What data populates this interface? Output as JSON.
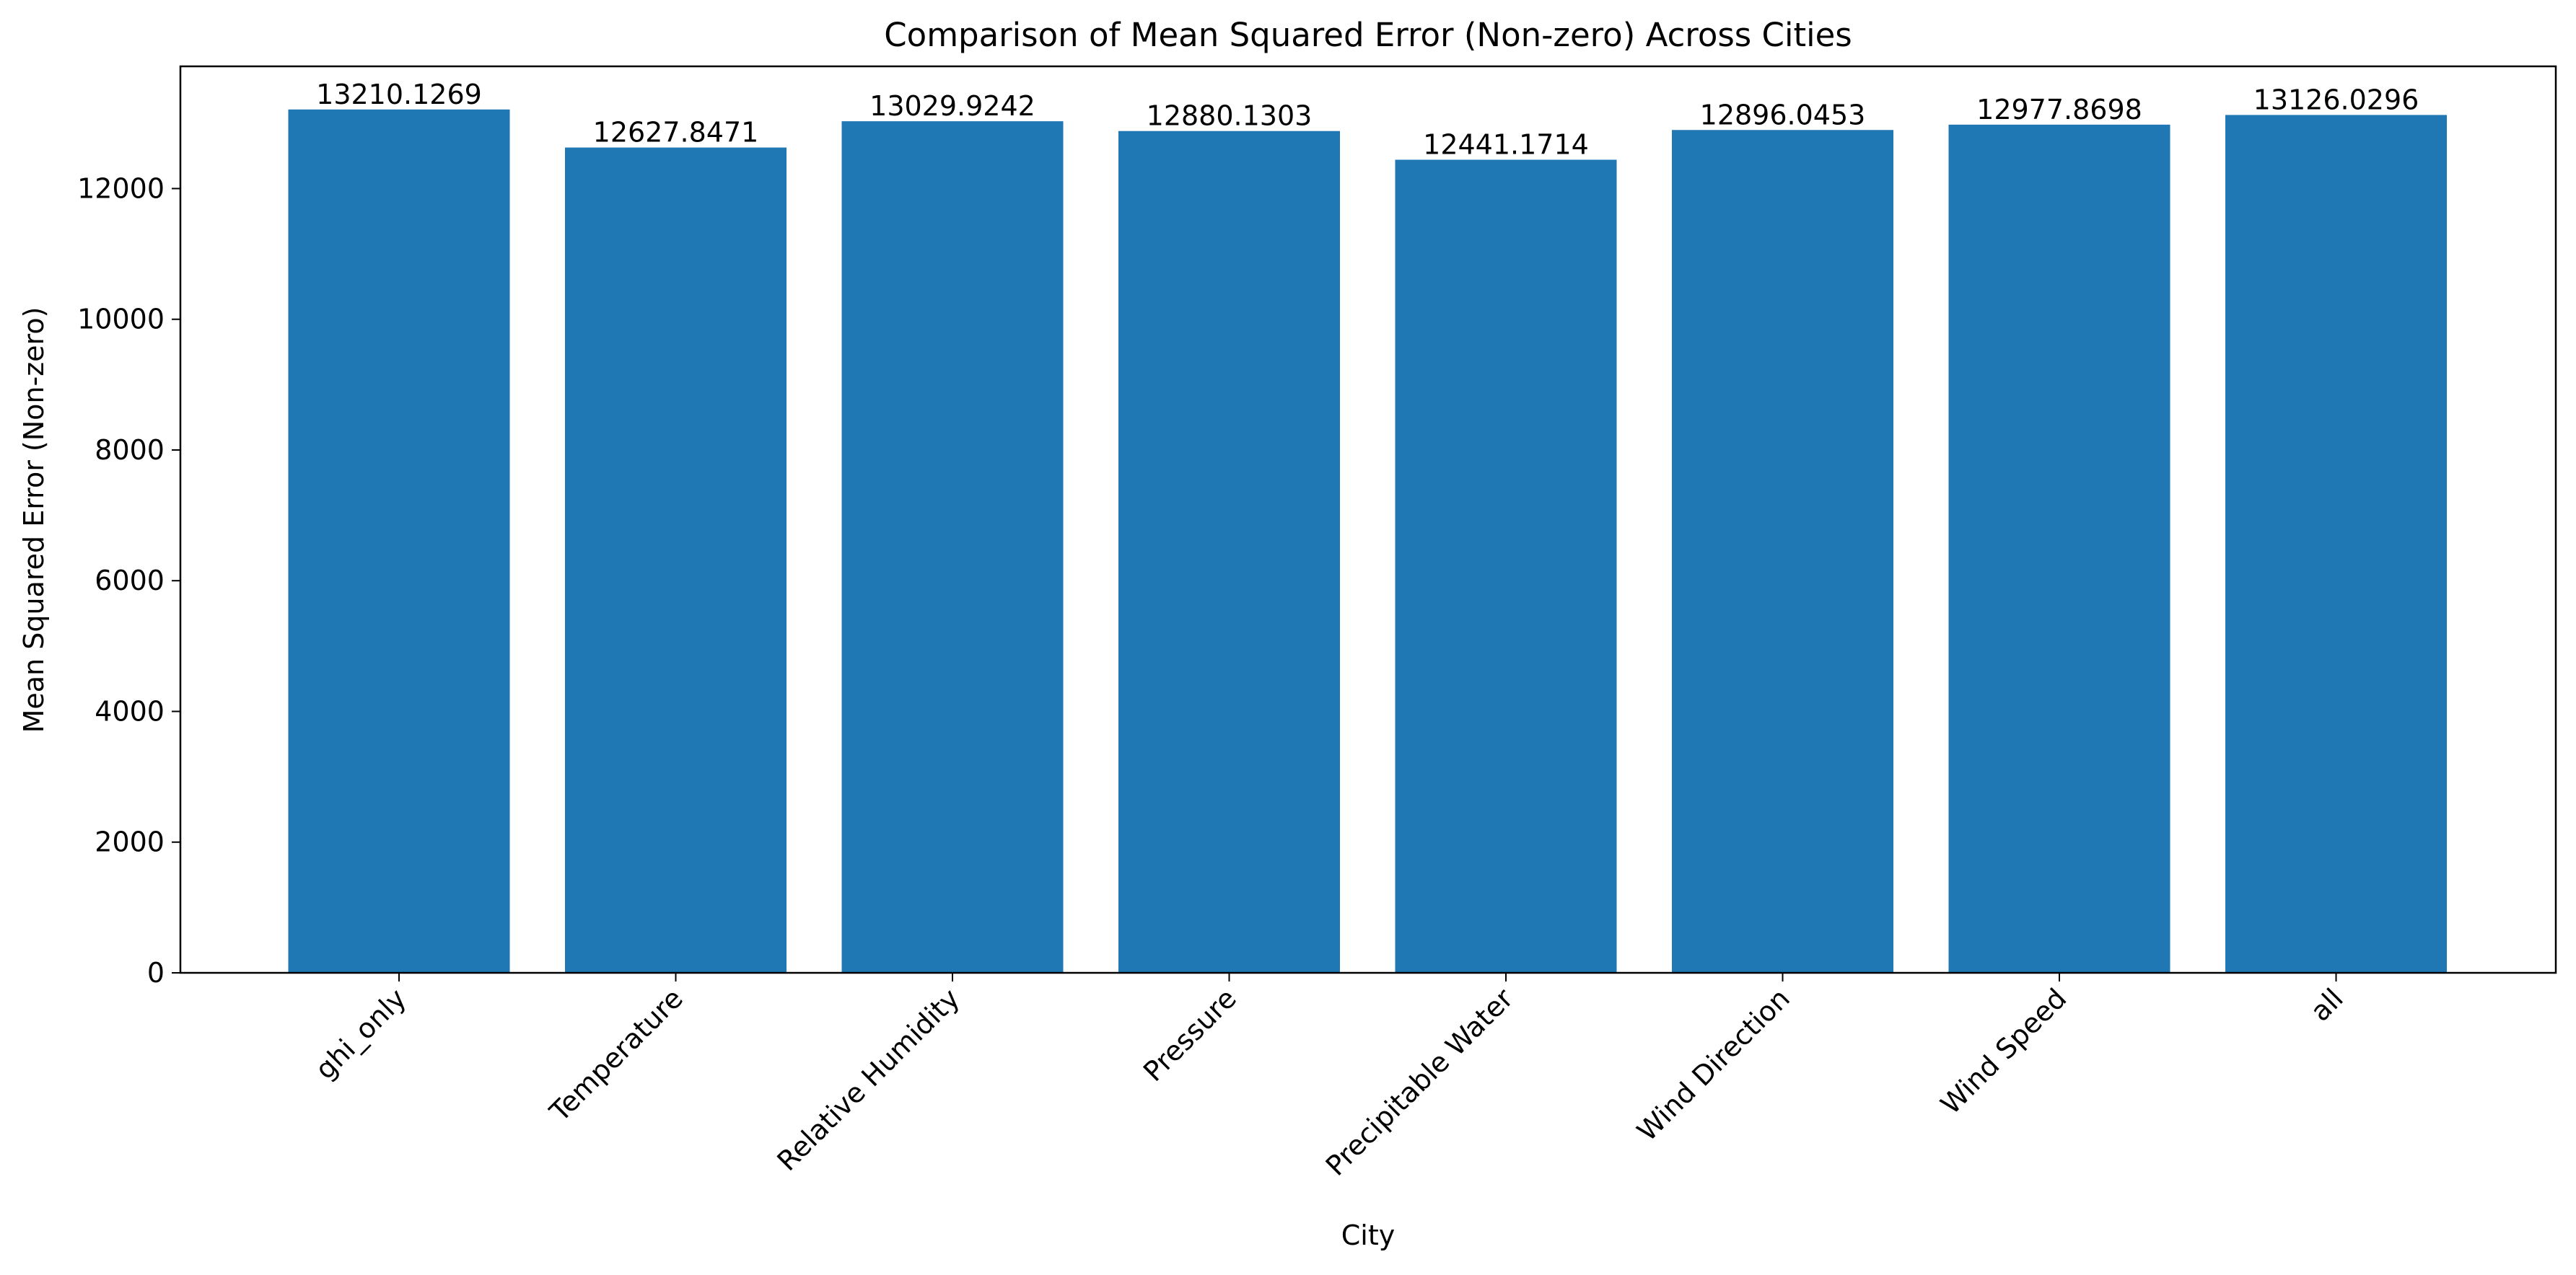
{
  "chart_data": {
    "type": "bar",
    "title": "Comparison of Mean Squared Error (Non-zero) Across Cities",
    "xlabel": "City",
    "ylabel": "Mean Squared Error (Non-zero)",
    "categories": [
      "ghi_only",
      "Temperature",
      "Relative Humidity",
      "Pressure",
      "Precipitable Water",
      "Wind Direction",
      "Wind Speed",
      "all"
    ],
    "values": [
      13210.1269,
      12627.8471,
      13029.9242,
      12880.1303,
      12441.1714,
      12896.0453,
      12977.8698,
      13126.0296
    ],
    "value_labels": [
      "13210.1269",
      "12627.8471",
      "13029.9242",
      "12880.1303",
      "12441.1714",
      "12896.0453",
      "12977.8698",
      "13126.0296"
    ],
    "yticks": [
      0,
      2000,
      4000,
      6000,
      8000,
      10000,
      12000
    ],
    "ylim": [
      0,
      13870
    ],
    "grid": false,
    "legend": false,
    "bar_color": "#1f77b4"
  }
}
